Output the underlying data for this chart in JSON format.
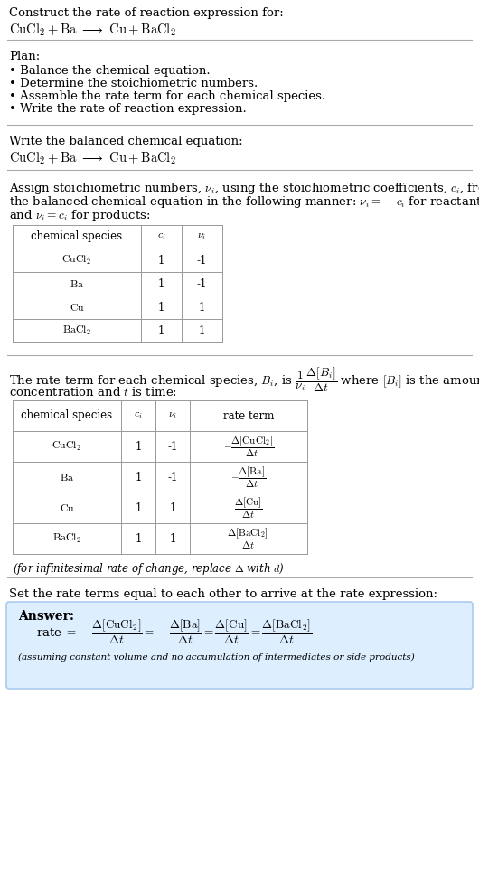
{
  "bg_color": "#ffffff",
  "text_color": "#000000",
  "title_line1": "Construct the rate of reaction expression for:",
  "section1_header": "Plan:",
  "section1_bullets": [
    "• Balance the chemical equation.",
    "• Determine the stoichiometric numbers.",
    "• Assemble the rate term for each chemical species.",
    "• Write the rate of reaction expression."
  ],
  "section2_header": "Write the balanced chemical equation:",
  "section3_header": "Assign stoichiometric numbers, $\\nu_i$, using the stoichiometric coefficients, $c_i$, from\nthe balanced chemical equation in the following manner: $\\nu_i = -c_i$ for reactants\nand $\\nu_i = c_i$ for products:",
  "table1_species": [
    "$\\mathrm{CuCl_2}$",
    "$\\mathrm{Ba}$",
    "$\\mathrm{Cu}$",
    "$\\mathrm{BaCl_2}$"
  ],
  "table1_ci": [
    "1",
    "1",
    "1",
    "1"
  ],
  "table1_ni": [
    "-1",
    "-1",
    "1",
    "1"
  ],
  "section4_line1a": "The rate term for each chemical species, $B_i$, is $\\dfrac{1}{\\nu_i}\\dfrac{\\Delta[B_i]}{\\Delta t}$ where $[B_i]$ is the amount",
  "section4_line2": "concentration and $t$ is time:",
  "table2_species": [
    "$\\mathrm{CuCl_2}$",
    "$\\mathrm{Ba}$",
    "$\\mathrm{Cu}$",
    "$\\mathrm{BaCl_2}$"
  ],
  "table2_ci": [
    "1",
    "1",
    "1",
    "1"
  ],
  "table2_ni": [
    "-1",
    "-1",
    "1",
    "1"
  ],
  "table2_rate": [
    "$-\\dfrac{\\Delta[\\mathrm{CuCl_2}]}{\\Delta t}$",
    "$-\\dfrac{\\Delta[\\mathrm{Ba}]}{\\Delta t}$",
    "$\\dfrac{\\Delta[\\mathrm{Cu}]}{\\Delta t}$",
    "$\\dfrac{\\Delta[\\mathrm{BaCl_2}]}{\\Delta t}$"
  ],
  "infinitesimal_note": "(for infinitesimal rate of change, replace $\\Delta$ with $d$)",
  "section5_header": "Set the rate terms equal to each other to arrive at the rate expression:",
  "answer_bg": "#ddeeff",
  "answer_border": "#aaccee",
  "answer_label": "Answer:",
  "answer_rate": "rate $= -\\dfrac{\\Delta[\\mathrm{CuCl_2}]}{\\Delta t} = -\\dfrac{\\Delta[\\mathrm{Ba}]}{\\Delta t} = \\dfrac{\\Delta[\\mathrm{Cu}]}{\\Delta t} = \\dfrac{\\Delta[\\mathrm{BaCl_2}]}{\\Delta t}$",
  "answer_footnote": "(assuming constant volume and no accumulation of intermediates or side products)"
}
